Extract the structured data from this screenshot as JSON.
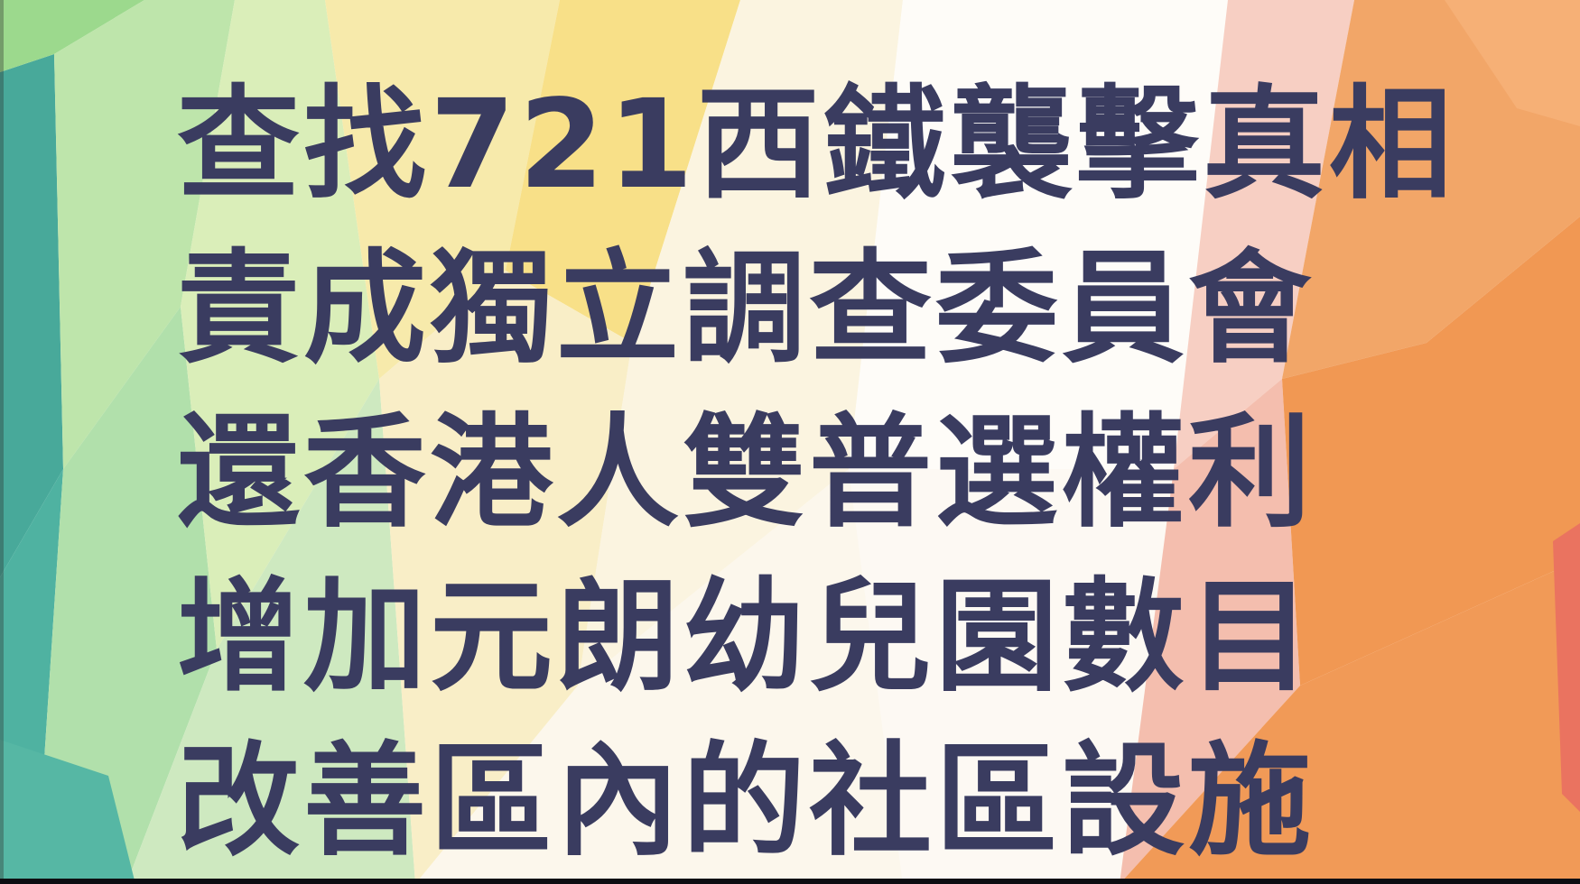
{
  "poster": {
    "lines": [
      "查找721西鐵襲擊真相",
      "責成獨立調查委員會",
      "還香港人雙普選權利",
      "增加元朗幼兒園數目",
      "改善區內的社區設施"
    ]
  },
  "colors": {
    "text": "#3a3c60",
    "background_base": "#fdfaf4",
    "teal": "#2f9e8c",
    "green": "#9fd58a",
    "yellow": "#f5d56a",
    "orange": "#f08a3a",
    "pink": "#f2b0a4"
  }
}
